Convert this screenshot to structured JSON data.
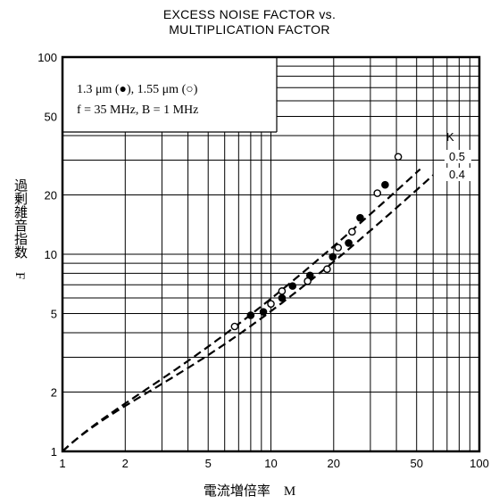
{
  "chart_data": {
    "type": "scatter",
    "title_line1": "EXCESS NOISE FACTOR vs.",
    "title_line2": "MULTIPLICATION FACTOR",
    "xlabel": "電流増倍率　M",
    "ylabel": "過剰雑音指数　F",
    "xscale": "log",
    "yscale": "log",
    "xlim": [
      1,
      100
    ],
    "ylim": [
      1,
      100
    ],
    "x_tick_labels": [
      "1",
      "2",
      "5",
      "10",
      "20",
      "50",
      "100"
    ],
    "y_tick_labels": [
      "1",
      "2",
      "5",
      "10",
      "20",
      "50",
      "100"
    ],
    "grid": true,
    "legend": {
      "placement": "top-left",
      "line1": "1.3 μm (●), 1.55 μm (○)",
      "line2": "f = 35 MHz,  B = 1 MHz"
    },
    "curve_header": "K",
    "curves": [
      {
        "name": "0.5",
        "k": 0.5
      },
      {
        "name": "0.4",
        "k": 0.4
      }
    ],
    "series": [
      {
        "name": "1.3 μm",
        "marker": "filled",
        "points": [
          [
            8.0,
            4.9
          ],
          [
            9.2,
            5.1
          ],
          [
            11.3,
            6.0
          ],
          [
            12.7,
            6.9
          ],
          [
            15.4,
            7.8
          ],
          [
            19.8,
            9.7
          ],
          [
            23.6,
            11.4
          ],
          [
            26.8,
            15.3
          ],
          [
            35.3,
            22.5
          ]
        ]
      },
      {
        "name": "1.55 μm",
        "marker": "open",
        "points": [
          [
            6.7,
            4.3
          ],
          [
            10.0,
            5.6
          ],
          [
            11.3,
            6.5
          ],
          [
            15.0,
            7.3
          ],
          [
            18.6,
            8.4
          ],
          [
            21.0,
            10.8
          ],
          [
            24.5,
            13.0
          ],
          [
            32.4,
            20.4
          ],
          [
            40.8,
            31.2
          ]
        ]
      }
    ]
  }
}
